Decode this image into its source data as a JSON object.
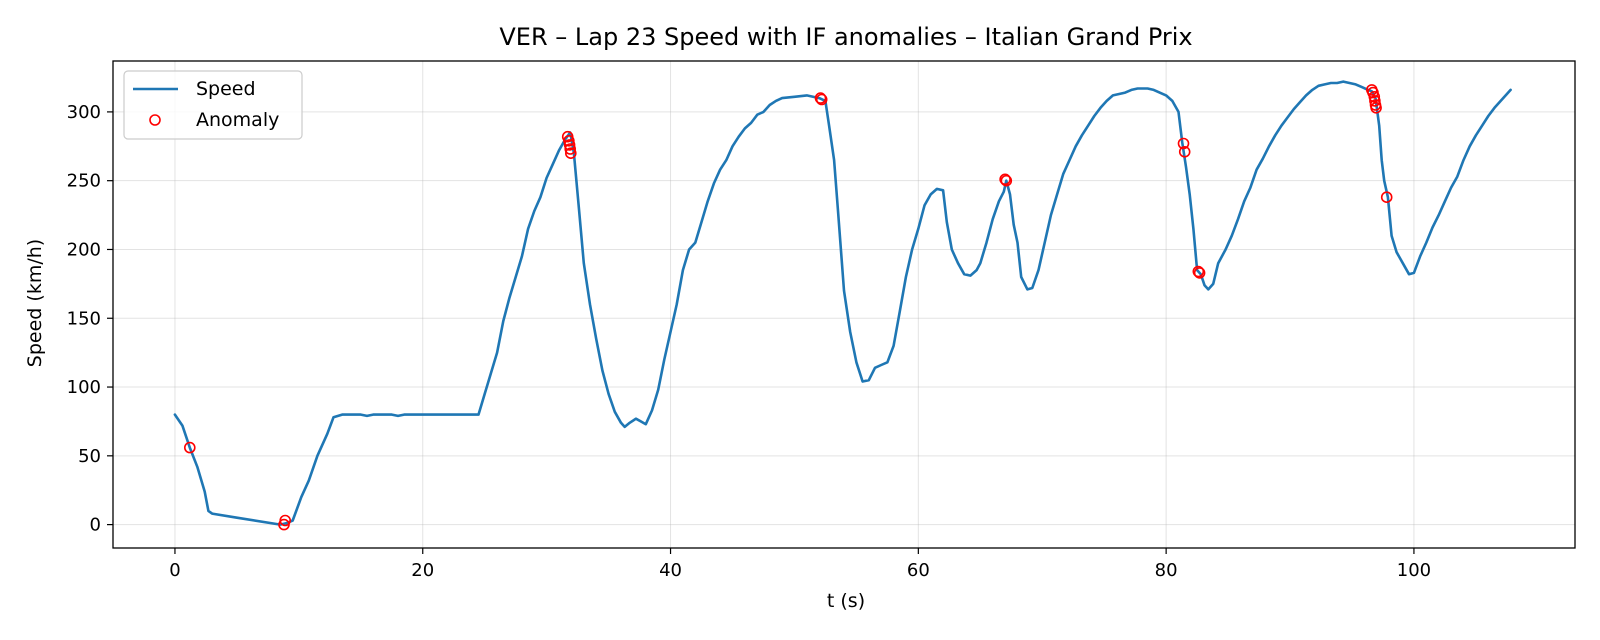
{
  "chart_data": {
    "type": "line",
    "title": "VER – Lap 23 Speed with IF anomalies – Italian Grand Prix",
    "xlabel": "t (s)",
    "ylabel": "Speed (km/h)",
    "xlim": [
      -5,
      113
    ],
    "ylim": [
      -17,
      337
    ],
    "xticks": [
      0,
      20,
      40,
      60,
      80,
      100
    ],
    "yticks": [
      0,
      50,
      100,
      150,
      200,
      250,
      300
    ],
    "grid": true,
    "legend_position": "top-left",
    "colors": {
      "speed": "#1f77b4",
      "anomaly": "#ff0000"
    },
    "series": [
      {
        "name": "Speed",
        "kind": "line",
        "points": [
          [
            0,
            80
          ],
          [
            0.6,
            72
          ],
          [
            1.2,
            56
          ],
          [
            1.8,
            42
          ],
          [
            2.4,
            24
          ],
          [
            2.7,
            10
          ],
          [
            3.0,
            8
          ],
          [
            5,
            5
          ],
          [
            8.5,
            0
          ],
          [
            9.0,
            1
          ],
          [
            9.5,
            3
          ],
          [
            10.2,
            20
          ],
          [
            10.8,
            32
          ],
          [
            11.5,
            50
          ],
          [
            12.3,
            66
          ],
          [
            12.8,
            78
          ],
          [
            13.5,
            80
          ],
          [
            15,
            80
          ],
          [
            15.5,
            79
          ],
          [
            16,
            80
          ],
          [
            17.5,
            80
          ],
          [
            18,
            79
          ],
          [
            18.5,
            80
          ],
          [
            24.5,
            80
          ],
          [
            25.0,
            95
          ],
          [
            25.5,
            110
          ],
          [
            26.0,
            125
          ],
          [
            26.5,
            148
          ],
          [
            27.0,
            165
          ],
          [
            27.5,
            180
          ],
          [
            28.0,
            195
          ],
          [
            28.5,
            215
          ],
          [
            29.0,
            228
          ],
          [
            29.5,
            238
          ],
          [
            30.0,
            252
          ],
          [
            30.5,
            262
          ],
          [
            31.0,
            272
          ],
          [
            31.5,
            280
          ],
          [
            31.9,
            285
          ],
          [
            32.2,
            270
          ],
          [
            32.6,
            230
          ],
          [
            33.0,
            190
          ],
          [
            33.5,
            160
          ],
          [
            34.0,
            135
          ],
          [
            34.5,
            112
          ],
          [
            35.0,
            95
          ],
          [
            35.5,
            82
          ],
          [
            36.0,
            74
          ],
          [
            36.3,
            71
          ],
          [
            36.7,
            74
          ],
          [
            37.2,
            77
          ],
          [
            37.6,
            75
          ],
          [
            38.0,
            73
          ],
          [
            38.5,
            83
          ],
          [
            39.0,
            98
          ],
          [
            39.5,
            120
          ],
          [
            40.0,
            140
          ],
          [
            40.5,
            160
          ],
          [
            41.0,
            185
          ],
          [
            41.5,
            200
          ],
          [
            42.0,
            205
          ],
          [
            42.5,
            220
          ],
          [
            43.0,
            235
          ],
          [
            43.5,
            248
          ],
          [
            44.0,
            258
          ],
          [
            44.5,
            265
          ],
          [
            45.0,
            275
          ],
          [
            45.5,
            282
          ],
          [
            46.0,
            288
          ],
          [
            46.5,
            292
          ],
          [
            47.0,
            298
          ],
          [
            47.5,
            300
          ],
          [
            48.0,
            305
          ],
          [
            48.5,
            308
          ],
          [
            49.0,
            310
          ],
          [
            50.0,
            311
          ],
          [
            51.0,
            312
          ],
          [
            52.0,
            310
          ],
          [
            52.5,
            308
          ],
          [
            52.8,
            290
          ],
          [
            53.2,
            265
          ],
          [
            53.5,
            230
          ],
          [
            54.0,
            170
          ],
          [
            54.5,
            140
          ],
          [
            55.0,
            118
          ],
          [
            55.5,
            104
          ],
          [
            56.0,
            105
          ],
          [
            56.5,
            114
          ],
          [
            57.0,
            116
          ],
          [
            57.5,
            118
          ],
          [
            58.0,
            130
          ],
          [
            58.5,
            155
          ],
          [
            59.0,
            180
          ],
          [
            59.5,
            200
          ],
          [
            60.0,
            215
          ],
          [
            60.5,
            232
          ],
          [
            61.0,
            240
          ],
          [
            61.5,
            244
          ],
          [
            62.0,
            243
          ],
          [
            62.3,
            220
          ],
          [
            62.7,
            200
          ],
          [
            63.2,
            190
          ],
          [
            63.7,
            182
          ],
          [
            64.2,
            181
          ],
          [
            64.7,
            185
          ],
          [
            65.0,
            190
          ],
          [
            65.5,
            205
          ],
          [
            66.0,
            222
          ],
          [
            66.5,
            235
          ],
          [
            66.9,
            242
          ],
          [
            67.1,
            250
          ],
          [
            67.4,
            240
          ],
          [
            67.7,
            218
          ],
          [
            68.0,
            205
          ],
          [
            68.3,
            180
          ],
          [
            68.8,
            171
          ],
          [
            69.2,
            172
          ],
          [
            69.7,
            185
          ],
          [
            70.2,
            205
          ],
          [
            70.7,
            225
          ],
          [
            71.2,
            240
          ],
          [
            71.7,
            255
          ],
          [
            72.2,
            265
          ],
          [
            72.7,
            275
          ],
          [
            73.2,
            283
          ],
          [
            73.7,
            290
          ],
          [
            74.2,
            297
          ],
          [
            74.7,
            303
          ],
          [
            75.2,
            308
          ],
          [
            75.7,
            312
          ],
          [
            76.2,
            313
          ],
          [
            76.7,
            314
          ],
          [
            77.2,
            316
          ],
          [
            77.7,
            317
          ],
          [
            78.5,
            317
          ],
          [
            79.0,
            316
          ],
          [
            80.0,
            312
          ],
          [
            80.5,
            308
          ],
          [
            81.0,
            300
          ],
          [
            81.3,
            278
          ],
          [
            81.6,
            260
          ],
          [
            81.9,
            240
          ],
          [
            82.2,
            215
          ],
          [
            82.5,
            185
          ],
          [
            82.8,
            182
          ],
          [
            83.1,
            174
          ],
          [
            83.4,
            171
          ],
          [
            83.8,
            175
          ],
          [
            84.2,
            190
          ],
          [
            84.8,
            200
          ],
          [
            85.3,
            210
          ],
          [
            85.8,
            222
          ],
          [
            86.3,
            235
          ],
          [
            86.8,
            245
          ],
          [
            87.3,
            258
          ],
          [
            87.8,
            266
          ],
          [
            88.3,
            275
          ],
          [
            88.8,
            283
          ],
          [
            89.3,
            290
          ],
          [
            89.8,
            296
          ],
          [
            90.3,
            302
          ],
          [
            90.8,
            307
          ],
          [
            91.3,
            312
          ],
          [
            91.8,
            316
          ],
          [
            92.3,
            319
          ],
          [
            92.8,
            320
          ],
          [
            93.3,
            321
          ],
          [
            93.8,
            321
          ],
          [
            94.3,
            322
          ],
          [
            94.8,
            321
          ],
          [
            95.3,
            320
          ],
          [
            95.8,
            318
          ],
          [
            96.3,
            316
          ],
          [
            96.6,
            315
          ],
          [
            96.9,
            310
          ],
          [
            97.2,
            290
          ],
          [
            97.4,
            265
          ],
          [
            97.6,
            250
          ],
          [
            97.9,
            238
          ],
          [
            98.2,
            210
          ],
          [
            98.6,
            198
          ],
          [
            99.1,
            190
          ],
          [
            99.6,
            182
          ],
          [
            100.0,
            183
          ],
          [
            100.5,
            195
          ],
          [
            101.0,
            205
          ],
          [
            101.5,
            216
          ],
          [
            102.0,
            225
          ],
          [
            102.5,
            235
          ],
          [
            103.0,
            245
          ],
          [
            103.5,
            253
          ],
          [
            104.0,
            265
          ],
          [
            104.5,
            275
          ],
          [
            105.0,
            283
          ],
          [
            105.5,
            290
          ],
          [
            106.0,
            297
          ],
          [
            106.5,
            303
          ],
          [
            107.0,
            308
          ],
          [
            107.5,
            313
          ],
          [
            107.8,
            316
          ]
        ]
      },
      {
        "name": "Anomaly",
        "kind": "scatter",
        "points": [
          [
            1.2,
            56
          ],
          [
            8.8,
            0
          ],
          [
            8.9,
            3
          ],
          [
            31.7,
            282
          ],
          [
            31.8,
            279
          ],
          [
            31.85,
            276
          ],
          [
            31.9,
            273
          ],
          [
            31.95,
            270
          ],
          [
            52.1,
            310
          ],
          [
            52.2,
            309
          ],
          [
            67.1,
            250
          ],
          [
            67.0,
            251
          ],
          [
            81.4,
            277
          ],
          [
            81.5,
            271
          ],
          [
            82.6,
            184
          ],
          [
            82.7,
            183
          ],
          [
            96.6,
            316
          ],
          [
            96.7,
            314
          ],
          [
            96.8,
            311
          ],
          [
            96.85,
            308
          ],
          [
            96.9,
            305
          ],
          [
            96.95,
            303
          ],
          [
            97.8,
            238
          ]
        ]
      }
    ]
  }
}
